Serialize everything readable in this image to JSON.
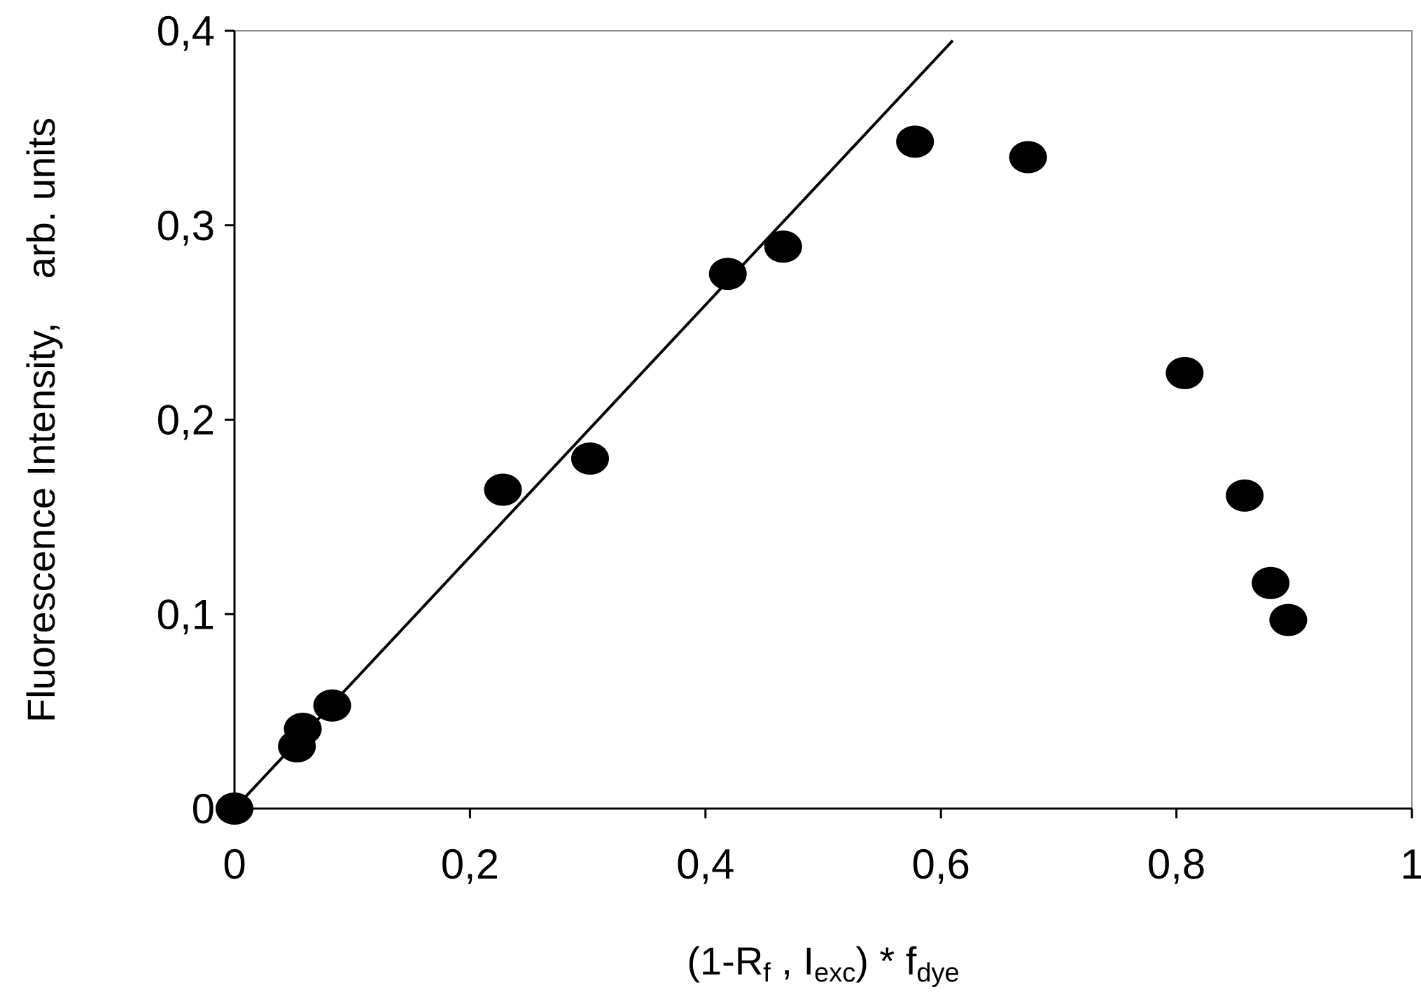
{
  "chart_data": {
    "type": "scatter",
    "title": "",
    "ylabel": "Fluorescence Intensity,    arb. units",
    "xlabel_parts": {
      "open": "(1-R",
      "sub1": "f",
      "mid": " , I",
      "sub2": "exc",
      "close": ") * f",
      "sub3": "dye"
    },
    "xlim": [
      0,
      1
    ],
    "ylim": [
      0,
      0.4
    ],
    "x_ticks": [
      0,
      0.2,
      0.4,
      0.6,
      0.8,
      1
    ],
    "x_tick_labels": [
      "0",
      "0,2",
      "0,4",
      "0,6",
      "0,8",
      "1"
    ],
    "y_ticks": [
      0,
      0.1,
      0.2,
      0.3,
      0.4
    ],
    "y_tick_labels": [
      "0",
      "0,1",
      "0,2",
      "0,3",
      "0,4"
    ],
    "grid": false,
    "legend": "none",
    "series": [
      {
        "marker": "filled-circle",
        "color": "#000000",
        "points": [
          {
            "x": 0.0,
            "y": 0.0
          },
          {
            "x": 0.053,
            "y": 0.032
          },
          {
            "x": 0.058,
            "y": 0.041
          },
          {
            "x": 0.083,
            "y": 0.053
          },
          {
            "x": 0.228,
            "y": 0.164
          },
          {
            "x": 0.302,
            "y": 0.18
          },
          {
            "x": 0.419,
            "y": 0.275
          },
          {
            "x": 0.466,
            "y": 0.289
          },
          {
            "x": 0.578,
            "y": 0.343
          },
          {
            "x": 0.674,
            "y": 0.335
          },
          {
            "x": 0.807,
            "y": 0.224
          },
          {
            "x": 0.858,
            "y": 0.161
          },
          {
            "x": 0.88,
            "y": 0.116
          },
          {
            "x": 0.895,
            "y": 0.097
          }
        ]
      }
    ],
    "fit_line": {
      "color": "#000000",
      "from": {
        "x": 0.0,
        "y": 0.0
      },
      "to": {
        "x": 0.61,
        "y": 0.395
      }
    }
  }
}
